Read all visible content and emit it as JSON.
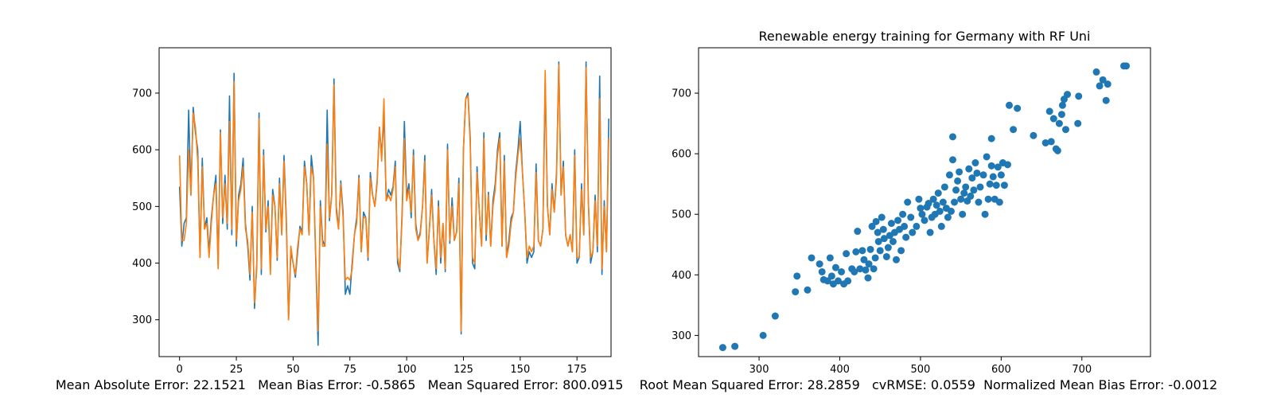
{
  "chart_data": [
    {
      "type": "line",
      "title": "",
      "xlabel": "",
      "ylabel": "",
      "xlim": [
        -9,
        190
      ],
      "ylim": [
        235,
        780
      ],
      "xticks": [
        0,
        25,
        50,
        75,
        100,
        125,
        150,
        175
      ],
      "yticks": [
        300,
        400,
        500,
        600,
        700
      ],
      "grid": false,
      "series": [
        {
          "color": "#1f77b4",
          "values": [
            535,
            430,
            470,
            480,
            670,
            520,
            675,
            630,
            600,
            410,
            585,
            460,
            480,
            420,
            480,
            520,
            555,
            395,
            635,
            470,
            555,
            460,
            695,
            450,
            735,
            430,
            520,
            540,
            585,
            470,
            430,
            370,
            500,
            320,
            400,
            665,
            380,
            600,
            455,
            510,
            390,
            530,
            500,
            405,
            550,
            450,
            590,
            480,
            300,
            420,
            400,
            375,
            420,
            465,
            455,
            580,
            540,
            450,
            590,
            550,
            400,
            255,
            510,
            440,
            430,
            670,
            475,
            520,
            725,
            500,
            460,
            545,
            490,
            345,
            360,
            345,
            400,
            450,
            480,
            555,
            420,
            490,
            480,
            405,
            560,
            520,
            500,
            545,
            640,
            590,
            660,
            510,
            530,
            520,
            535,
            580,
            400,
            385,
            490,
            650,
            520,
            540,
            480,
            600,
            470,
            440,
            455,
            500,
            590,
            400,
            460,
            530,
            440,
            380,
            510,
            400,
            470,
            385,
            610,
            435,
            515,
            440,
            455,
            550,
            275,
            600,
            690,
            700,
            620,
            400,
            390,
            570,
            490,
            430,
            630,
            440,
            525,
            430,
            510,
            540,
            600,
            630,
            430,
            590,
            410,
            440,
            480,
            490,
            560,
            600,
            650,
            560,
            490,
            400,
            420,
            410,
            420,
            575,
            440,
            430,
            460,
            720,
            500,
            450,
            540,
            490,
            560,
            755,
            520,
            580,
            450,
            430,
            450,
            420,
            600,
            400,
            410,
            540,
            450,
            755,
            510,
            400,
            420,
            520,
            420,
            730,
            380,
            510,
            420,
            655
          ]
        },
        {
          "color": "#ff7f0e",
          "values": [
            590,
            440,
            440,
            470,
            600,
            520,
            665,
            640,
            580,
            410,
            570,
            460,
            470,
            410,
            470,
            520,
            540,
            390,
            630,
            480,
            540,
            470,
            650,
            460,
            720,
            440,
            510,
            530,
            570,
            460,
            440,
            380,
            490,
            330,
            390,
            655,
            390,
            590,
            460,
            500,
            380,
            520,
            500,
            410,
            540,
            450,
            580,
            470,
            300,
            430,
            400,
            380,
            430,
            460,
            450,
            570,
            540,
            450,
            570,
            550,
            410,
            280,
            500,
            430,
            430,
            610,
            480,
            520,
            715,
            490,
            460,
            540,
            480,
            370,
            375,
            370,
            390,
            450,
            470,
            550,
            420,
            480,
            480,
            410,
            550,
            520,
            500,
            540,
            640,
            580,
            690,
            510,
            520,
            510,
            530,
            570,
            410,
            390,
            480,
            620,
            510,
            530,
            490,
            590,
            460,
            440,
            450,
            500,
            580,
            400,
            460,
            520,
            440,
            390,
            500,
            410,
            470,
            390,
            600,
            440,
            500,
            440,
            455,
            540,
            280,
            600,
            690,
            695,
            610,
            410,
            400,
            560,
            490,
            430,
            620,
            450,
            520,
            430,
            500,
            530,
            590,
            620,
            430,
            580,
            410,
            430,
            470,
            490,
            550,
            590,
            620,
            560,
            490,
            410,
            430,
            420,
            430,
            560,
            440,
            430,
            460,
            740,
            500,
            450,
            530,
            490,
            550,
            750,
            520,
            570,
            450,
            430,
            450,
            420,
            590,
            410,
            410,
            530,
            450,
            745,
            510,
            410,
            420,
            510,
            430,
            690,
            390,
            500,
            420,
            620
          ]
        }
      ]
    },
    {
      "type": "scatter",
      "title": "Renewable energy training for Germany with RF Uni",
      "xlabel": "",
      "ylabel": "",
      "xlim": [
        225,
        785
      ],
      "ylim": [
        265,
        775
      ],
      "xticks": [
        300,
        400,
        500,
        600,
        700
      ],
      "yticks": [
        300,
        400,
        500,
        600,
        700
      ],
      "grid": false,
      "color": "#1f77b4",
      "points": [
        [
          255,
          280
        ],
        [
          270,
          282
        ],
        [
          305,
          300
        ],
        [
          320,
          332
        ],
        [
          345,
          372
        ],
        [
          347,
          398
        ],
        [
          360,
          375
        ],
        [
          365,
          428
        ],
        [
          375,
          418
        ],
        [
          378,
          405
        ],
        [
          380,
          392
        ],
        [
          385,
          390
        ],
        [
          388,
          428
        ],
        [
          390,
          398
        ],
        [
          392,
          385
        ],
        [
          395,
          412
        ],
        [
          398,
          390
        ],
        [
          402,
          405
        ],
        [
          405,
          385
        ],
        [
          408,
          435
        ],
        [
          410,
          390
        ],
        [
          415,
          410
        ],
        [
          418,
          405
        ],
        [
          420,
          438
        ],
        [
          422,
          472
        ],
        [
          425,
          410
        ],
        [
          428,
          440
        ],
        [
          430,
          425
        ],
        [
          432,
          408
        ],
        [
          435,
          395
        ],
        [
          436,
          418
        ],
        [
          438,
          442
        ],
        [
          440,
          480
        ],
        [
          442,
          410
        ],
        [
          444,
          428
        ],
        [
          445,
          488
        ],
        [
          447,
          470
        ],
        [
          448,
          455
        ],
        [
          450,
          440
        ],
        [
          452,
          495
        ],
        [
          454,
          475
        ],
        [
          455,
          460
        ],
        [
          458,
          430
        ],
        [
          460,
          445
        ],
        [
          462,
          465
        ],
        [
          464,
          485
        ],
        [
          466,
          455
        ],
        [
          468,
          470
        ],
        [
          470,
          425
        ],
        [
          472,
          490
        ],
        [
          474,
          475
        ],
        [
          476,
          440
        ],
        [
          478,
          500
        ],
        [
          480,
          480
        ],
        [
          482,
          462
        ],
        [
          484,
          520
        ],
        [
          488,
          495
        ],
        [
          490,
          470
        ],
        [
          495,
          480
        ],
        [
          498,
          525
        ],
        [
          500,
          510
        ],
        [
          502,
          500
        ],
        [
          505,
          490
        ],
        [
          508,
          512
        ],
        [
          510,
          518
        ],
        [
          512,
          470
        ],
        [
          514,
          495
        ],
        [
          516,
          525
        ],
        [
          518,
          500
        ],
        [
          520,
          515
        ],
        [
          522,
          535
        ],
        [
          524,
          505
        ],
        [
          526,
          480
        ],
        [
          528,
          520
        ],
        [
          530,
          545
        ],
        [
          532,
          510
        ],
        [
          534,
          495
        ],
        [
          536,
          565
        ],
        [
          538,
          505
        ],
        [
          540,
          590
        ],
        [
          542,
          520
        ],
        [
          544,
          540
        ],
        [
          546,
          555
        ],
        [
          548,
          570
        ],
        [
          550,
          525
        ],
        [
          552,
          500
        ],
        [
          554,
          535
        ],
        [
          556,
          545
        ],
        [
          558,
          522
        ],
        [
          560,
          575
        ],
        [
          562,
          530
        ],
        [
          564,
          560
        ],
        [
          566,
          540
        ],
        [
          568,
          585
        ],
        [
          570,
          568
        ],
        [
          572,
          520
        ],
        [
          574,
          545
        ],
        [
          578,
          565
        ],
        [
          580,
          500
        ],
        [
          582,
          595
        ],
        [
          584,
          525
        ],
        [
          586,
          550
        ],
        [
          588,
          580
        ],
        [
          590,
          562
        ],
        [
          592,
          525
        ],
        [
          594,
          548
        ],
        [
          596,
          578
        ],
        [
          598,
          520
        ],
        [
          600,
          565
        ],
        [
          602,
          585
        ],
        [
          604,
          548
        ],
        [
          608,
          582
        ],
        [
          540,
          628
        ],
        [
          588,
          625
        ],
        [
          610,
          680
        ],
        [
          615,
          640
        ],
        [
          620,
          675
        ],
        [
          640,
          630
        ],
        [
          655,
          618
        ],
        [
          660,
          670
        ],
        [
          662,
          620
        ],
        [
          665,
          658
        ],
        [
          668,
          608
        ],
        [
          670,
          605
        ],
        [
          672,
          650
        ],
        [
          675,
          665
        ],
        [
          676,
          680
        ],
        [
          678,
          690
        ],
        [
          680,
          640
        ],
        [
          682,
          698
        ],
        [
          695,
          650
        ],
        [
          696,
          695
        ],
        [
          718,
          735
        ],
        [
          722,
          712
        ],
        [
          726,
          722
        ],
        [
          730,
          688
        ],
        [
          732,
          715
        ],
        [
          752,
          745
        ],
        [
          755,
          745
        ]
      ]
    }
  ],
  "metrics_text": "Mean Absolute Error: 22.1521   Mean Bias Error: -0.5865   Mean Squared Error: 800.0915    Root Mean Squared Error: 28.2859   cvRMSE: 0.0559  Normalized Mean Bias Error: -0.0012"
}
